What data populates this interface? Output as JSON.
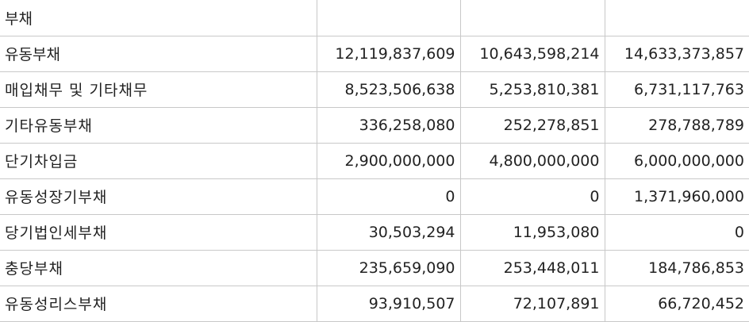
{
  "rows": [
    {
      "label": "부채",
      "values": [
        "",
        "",
        ""
      ]
    },
    {
      "label": "유동부채",
      "values": [
        "12,119,837,609",
        "10,643,598,214",
        "14,633,373,857"
      ]
    },
    {
      "label": "매입채무 및 기타채무",
      "values": [
        "8,523,506,638",
        "5,253,810,381",
        "6,731,117,763"
      ]
    },
    {
      "label": "기타유동부채",
      "values": [
        "336,258,080",
        "252,278,851",
        "278,788,789"
      ]
    },
    {
      "label": "단기차입금",
      "values": [
        "2,900,000,000",
        "4,800,000,000",
        "6,000,000,000"
      ]
    },
    {
      "label": "유동성장기부채",
      "values": [
        "0",
        "0",
        "1,371,960,000"
      ]
    },
    {
      "label": "당기법인세부채",
      "values": [
        "30,503,294",
        "11,953,080",
        "0"
      ]
    },
    {
      "label": "충당부채",
      "values": [
        "235,659,090",
        "253,448,011",
        "184,786,853"
      ]
    },
    {
      "label": "유동성리스부채",
      "values": [
        "93,910,507",
        "72,107,891",
        "66,720,452"
      ]
    }
  ]
}
